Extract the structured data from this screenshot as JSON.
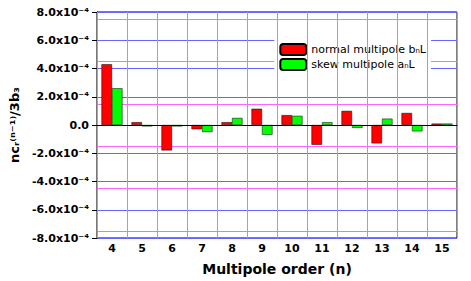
{
  "chart_data": {
    "type": "bar",
    "x_label": "Multipole order (n)",
    "y_label": "ncᵣ⁽ⁿ⁻¹⁾/3b₃",
    "categories": [
      "4",
      "5",
      "6",
      "7",
      "8",
      "9",
      "10",
      "11",
      "12",
      "13",
      "14",
      "15"
    ],
    "series": [
      {
        "name": "normal multipole bₙL",
        "color": "#ff0000",
        "values": [
          0.00043,
          2e-05,
          -0.00018,
          -3e-05,
          2e-05,
          0.000115,
          7e-05,
          -0.00014,
          0.0001,
          -0.00013,
          8.5e-05,
          1e-05
        ]
      },
      {
        "name": "skew multipole aₙL",
        "color": "#00ff00",
        "values": [
          0.00026,
          -1e-05,
          -1e-05,
          -5e-05,
          5e-05,
          -7e-05,
          6.5e-05,
          2e-05,
          -2e-05,
          4.5e-05,
          -4.5e-05,
          1e-05
        ]
      }
    ],
    "ylim": [
      -0.0008,
      0.0008
    ],
    "yticks": [
      {
        "value": -0.0008,
        "label": "-8.0x10⁻⁴"
      },
      {
        "value": -0.0006,
        "label": "-6.0x10⁻⁴"
      },
      {
        "value": -0.0004,
        "label": "-4.0x10⁻⁴"
      },
      {
        "value": -0.0002,
        "label": "-2.0x10⁻⁴"
      },
      {
        "value": 0,
        "label": "0.0"
      },
      {
        "value": 0.0002,
        "label": "2.0x10⁻⁴"
      },
      {
        "value": 0.0004,
        "label": "4.0x10⁻⁴"
      },
      {
        "value": 0.0006,
        "label": "6.0x10⁻⁴"
      },
      {
        "value": 0.0008,
        "label": "8.0x10⁻⁴"
      }
    ],
    "grid": true,
    "legend": "upper right"
  }
}
